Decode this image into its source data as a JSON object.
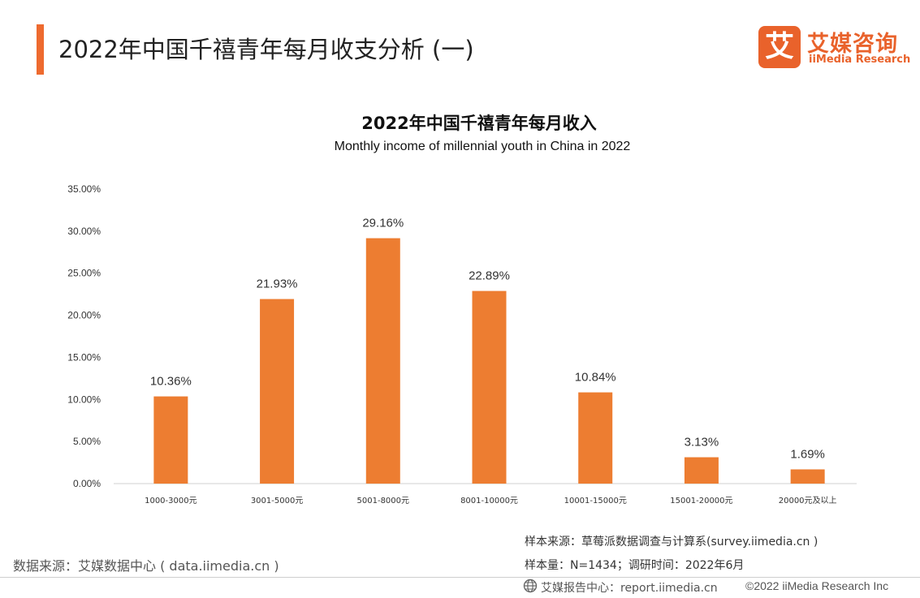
{
  "page": {
    "title": "2022年中国千禧青年每月收支分析 (一)"
  },
  "logo": {
    "mark_char": "艾",
    "cn": "艾媒咨询",
    "en": "iiMedia Research"
  },
  "colors": {
    "accent": "#ee6a2f",
    "bar": "#ed7d31",
    "logo": "#e9622b"
  },
  "chart_data": {
    "type": "bar",
    "title": "2022年中国千禧青年每月收入",
    "subtitle": "Monthly income of millennial youth in China in 2022",
    "categories": [
      "1000-3000元",
      "3001-5000元",
      "5001-8000元",
      "8001-10000元",
      "10001-15000元",
      "15001-20000元",
      "20000元及以上"
    ],
    "values": [
      10.36,
      21.93,
      29.16,
      22.89,
      10.84,
      3.13,
      1.69
    ],
    "value_labels": [
      "10.36%",
      "21.93%",
      "29.16%",
      "22.89%",
      "10.84%",
      "3.13%",
      "1.69%"
    ],
    "yticks": [
      "0.00%",
      "5.00%",
      "10.00%",
      "15.00%",
      "20.00%",
      "25.00%",
      "30.00%",
      "35.00%"
    ],
    "ylim": [
      0,
      35
    ],
    "xlabel": "",
    "ylabel": "",
    "grid": false,
    "legend": "none"
  },
  "footer": {
    "source_left": "数据来源：艾媒数据中心 ( data.iimedia.cn )",
    "sample_source": "样本来源：草莓派数据调查与计算系(survey.iimedia.cn )",
    "sample_size": "样本量：N=1434；调研时间：2022年6月",
    "report": "艾媒报告中心：report.iimedia.cn",
    "copyright": "©2022 iiMedia Research Inc",
    "globe_icon": "globe-icon"
  }
}
